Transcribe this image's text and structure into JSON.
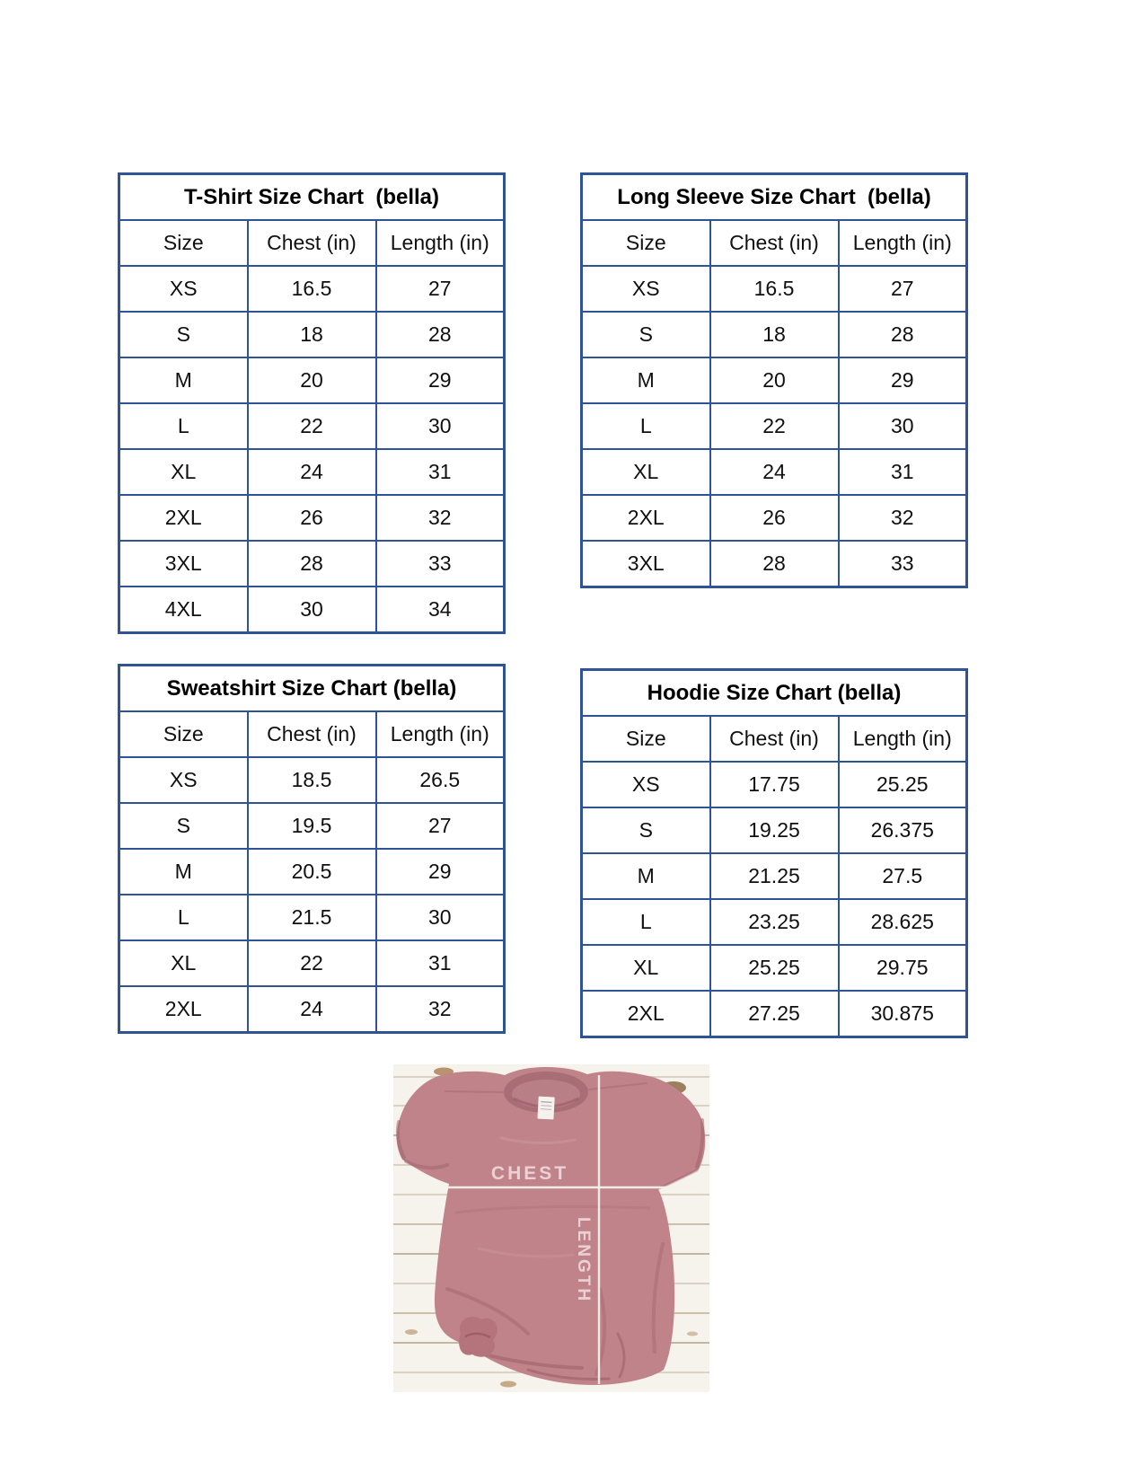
{
  "colors": {
    "table_border": "#2F5496",
    "title_text": "#000000",
    "cell_text": "#101010"
  },
  "tables": [
    {
      "id": "tshirt-size-chart",
      "title": "T-Shirt Size Chart  (bella)",
      "headers": [
        "Size",
        "Chest (in)",
        "Length (in)"
      ],
      "rows": [
        [
          "XS",
          "16.5",
          "27"
        ],
        [
          "S",
          "18",
          "28"
        ],
        [
          "M",
          "20",
          "29"
        ],
        [
          "L",
          "22",
          "30"
        ],
        [
          "XL",
          "24",
          "31"
        ],
        [
          "2XL",
          "26",
          "32"
        ],
        [
          "3XL",
          "28",
          "33"
        ],
        [
          "4XL",
          "30",
          "34"
        ]
      ]
    },
    {
      "id": "longsleeve-size-chart",
      "title": "Long Sleeve Size Chart  (bella)",
      "headers": [
        "Size",
        "Chest (in)",
        "Length (in)"
      ],
      "rows": [
        [
          "XS",
          "16.5",
          "27"
        ],
        [
          "S",
          "18",
          "28"
        ],
        [
          "M",
          "20",
          "29"
        ],
        [
          "L",
          "22",
          "30"
        ],
        [
          "XL",
          "24",
          "31"
        ],
        [
          "2XL",
          "26",
          "32"
        ],
        [
          "3XL",
          "28",
          "33"
        ]
      ]
    },
    {
      "id": "sweatshirt-size-chart",
      "title": "Sweatshirt Size Chart (bella)",
      "headers": [
        "Size",
        "Chest (in)",
        "Length (in)"
      ],
      "rows": [
        [
          "XS",
          "18.5",
          "26.5"
        ],
        [
          "S",
          "19.5",
          "27"
        ],
        [
          "M",
          "20.5",
          "29"
        ],
        [
          "L",
          "21.5",
          "30"
        ],
        [
          "XL",
          "22",
          "31"
        ],
        [
          "2XL",
          "24",
          "32"
        ]
      ]
    },
    {
      "id": "hoodie-size-chart",
      "title": "Hoodie Size Chart (bella)",
      "headers": [
        "Size",
        "Chest (in)",
        "Length (in)"
      ],
      "rows": [
        [
          "XS",
          "17.75",
          "25.25"
        ],
        [
          "S",
          "19.25",
          "26.375"
        ],
        [
          "M",
          "21.25",
          "27.5"
        ],
        [
          "L",
          "23.25",
          "28.625"
        ],
        [
          "XL",
          "25.25",
          "29.75"
        ],
        [
          "2XL",
          "27.25",
          "30.875"
        ]
      ]
    }
  ],
  "photo": {
    "chest_label": "CHEST",
    "length_label": "LENGTH",
    "colors": {
      "shirt": "#c0838a",
      "shirt_shadow": "#9a5f68",
      "collar": "#a86d75",
      "collar_inner": "#b97f87",
      "knot": "#b5737c",
      "measure_line": "#f6f1ea",
      "measure_text": "#eed5d8",
      "wood": "#f6f3ed",
      "wood_gap": "#cec2ad",
      "tag": "#f5f2ee"
    }
  }
}
